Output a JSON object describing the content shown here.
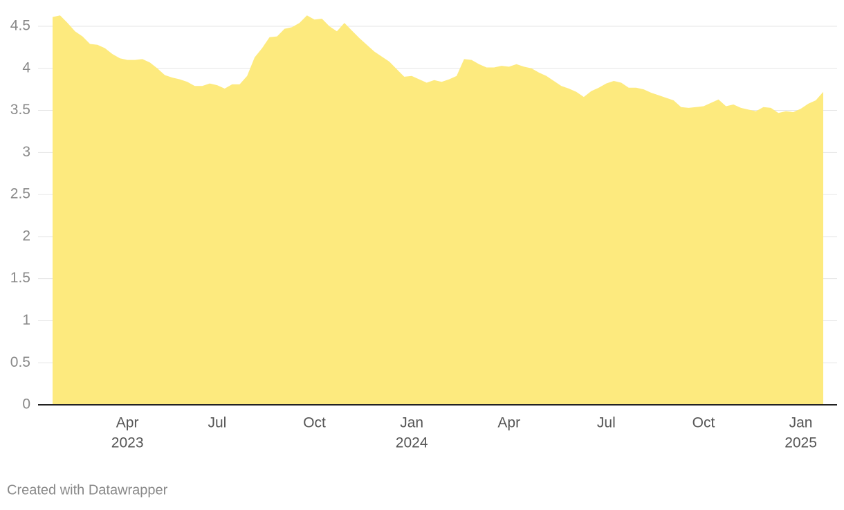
{
  "chart_data": {
    "type": "area",
    "categories": [
      null,
      null,
      null,
      null,
      null,
      null,
      null,
      null,
      null,
      null,
      "Apr",
      null,
      null,
      null,
      null,
      null,
      null,
      null,
      null,
      null,
      null,
      null,
      "Jul",
      null,
      null,
      null,
      null,
      null,
      null,
      null,
      null,
      null,
      null,
      null,
      null,
      "Oct",
      null,
      null,
      null,
      null,
      null,
      null,
      null,
      null,
      null,
      null,
      null,
      null,
      "Jan",
      null,
      null,
      null,
      null,
      null,
      null,
      null,
      null,
      null,
      null,
      null,
      null,
      "Apr",
      null,
      null,
      null,
      null,
      null,
      null,
      null,
      null,
      null,
      null,
      null,
      null,
      "Jul",
      null,
      null,
      null,
      null,
      null,
      null,
      null,
      null,
      null,
      null,
      null,
      null,
      "Oct",
      null,
      null,
      null,
      null,
      null,
      null,
      null,
      null,
      null,
      null,
      null,
      null,
      "Jan",
      null,
      null,
      null
    ],
    "category_years": [
      null,
      null,
      null,
      null,
      null,
      null,
      null,
      null,
      null,
      null,
      "2023",
      null,
      null,
      null,
      null,
      null,
      null,
      null,
      null,
      null,
      null,
      null,
      null,
      null,
      null,
      null,
      null,
      null,
      null,
      null,
      null,
      null,
      null,
      null,
      null,
      null,
      null,
      null,
      null,
      null,
      null,
      null,
      null,
      null,
      null,
      null,
      null,
      null,
      "2024",
      null,
      null,
      null,
      null,
      null,
      null,
      null,
      null,
      null,
      null,
      null,
      null,
      null,
      null,
      null,
      null,
      null,
      null,
      null,
      null,
      null,
      null,
      null,
      null,
      null,
      null,
      null,
      null,
      null,
      null,
      null,
      null,
      null,
      null,
      null,
      null,
      null,
      null,
      null,
      null,
      null,
      null,
      null,
      null,
      null,
      null,
      null,
      null,
      null,
      null,
      null,
      "2025",
      null,
      null,
      null
    ],
    "values": [
      4.61,
      4.63,
      4.54,
      4.44,
      4.38,
      4.29,
      4.28,
      4.24,
      4.17,
      4.12,
      4.1,
      4.1,
      4.11,
      4.07,
      4.0,
      3.92,
      3.89,
      3.87,
      3.84,
      3.79,
      3.79,
      3.82,
      3.8,
      3.76,
      3.81,
      3.81,
      3.91,
      4.13,
      4.24,
      4.37,
      4.38,
      4.47,
      4.49,
      4.54,
      4.63,
      4.58,
      4.59,
      4.5,
      4.44,
      4.54,
      4.45,
      4.36,
      4.28,
      4.2,
      4.14,
      4.08,
      3.99,
      3.9,
      3.91,
      3.87,
      3.83,
      3.86,
      3.84,
      3.87,
      3.91,
      4.11,
      4.1,
      4.05,
      4.01,
      4.01,
      4.03,
      4.02,
      4.05,
      4.02,
      4.0,
      3.95,
      3.91,
      3.85,
      3.79,
      3.76,
      3.72,
      3.66,
      3.73,
      3.77,
      3.82,
      3.85,
      3.83,
      3.77,
      3.77,
      3.75,
      3.71,
      3.68,
      3.65,
      3.62,
      3.54,
      3.53,
      3.54,
      3.55,
      3.59,
      3.63,
      3.55,
      3.57,
      3.53,
      3.51,
      3.49,
      3.54,
      3.53,
      3.47,
      3.49,
      3.48,
      3.52,
      3.58,
      3.62,
      3.72
    ],
    "color": "#fdea7e",
    "ylim": [
      0,
      4.5
    ],
    "yticks": [
      0,
      0.5,
      1,
      1.5,
      2,
      2.5,
      3,
      3.5,
      4,
      4.5
    ],
    "grid": true
  },
  "credit": "Created with Datawrapper"
}
